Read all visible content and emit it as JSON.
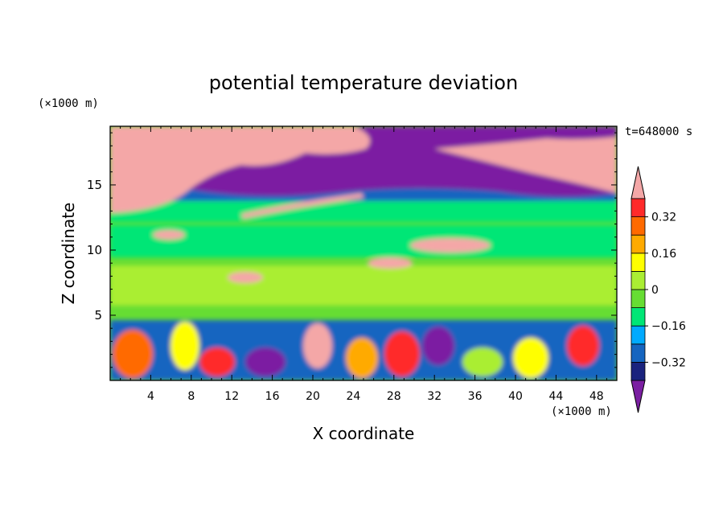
{
  "chart_data": {
    "type": "heatmap",
    "title": "potential temperature deviation",
    "time_label": "t=648000 s",
    "xlabel": "X coordinate",
    "ylabel": "Z coordinate",
    "x_unit": "(×1000 m)",
    "y_unit": "(×1000 m)",
    "xlim": [
      0,
      50
    ],
    "ylim": [
      0,
      19.5
    ],
    "x_ticks": [
      4,
      8,
      12,
      16,
      20,
      24,
      28,
      32,
      36,
      40,
      44,
      48
    ],
    "y_ticks": [
      5,
      10,
      15
    ],
    "colorbar": {
      "levels": [
        -0.4,
        -0.32,
        -0.24,
        -0.16,
        -0.08,
        0,
        0.08,
        0.16,
        0.24,
        0.32,
        0.4
      ],
      "tick_labels": [
        "0.32",
        "0.16",
        "0",
        "−0.16",
        "−0.32"
      ],
      "tick_values": [
        0.32,
        0.16,
        0,
        -0.16,
        -0.32
      ],
      "colors": [
        "#7b1fa2",
        "#1a237e",
        "#1565c0",
        "#00aaff",
        "#00e676",
        "#66dd33",
        "#aaee33",
        "#ffff00",
        "#ffaa00",
        "#ff6a00",
        "#ff2a2a",
        "#f4a7a7"
      ],
      "extend": "both"
    }
  }
}
